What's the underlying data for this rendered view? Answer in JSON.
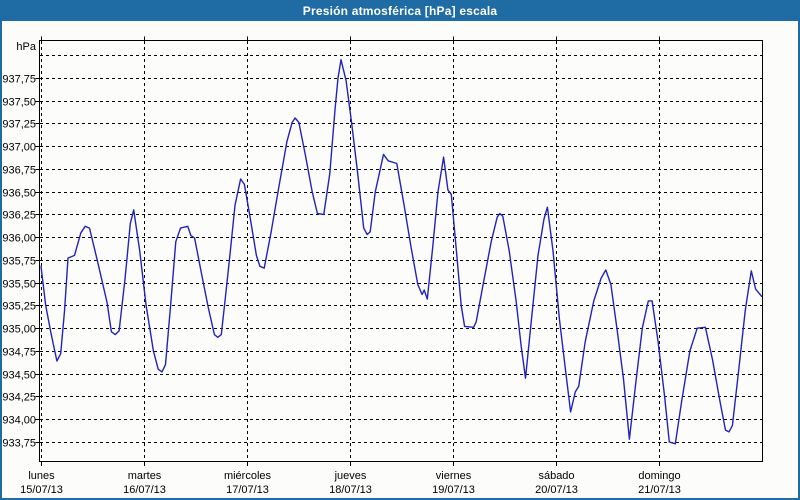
{
  "window": {
    "title": "Presión atmosférica [hPa] escala"
  },
  "colors": {
    "accent": "#1e6ca3",
    "titlebar_text": "#ffffff",
    "curve": "#2222c0",
    "grid": "#000000",
    "background": "#fcfdfa"
  },
  "chart_data": {
    "type": "line",
    "title": "Presión atmosférica [hPa] escala",
    "ylabel": "hPa",
    "unit_label": "hPa",
    "grid": "dashed",
    "legend": "none",
    "ylim": [
      933.55,
      938.15
    ],
    "y_gridline_top_value": 938.0,
    "y_gridline_step": 0.25,
    "y_tick_values": [
      937.75,
      937.5,
      937.25,
      937.0,
      936.75,
      936.5,
      936.25,
      936.0,
      935.75,
      935.5,
      935.25,
      935.0,
      934.75,
      934.5,
      934.25,
      934.0,
      933.75
    ],
    "y_tick_labels": [
      "937,75",
      "937,50",
      "937,25",
      "937,00",
      "936,75",
      "936,50",
      "936,25",
      "936,00",
      "935,75",
      "935,50",
      "935,25",
      "935,00",
      "934,75",
      "934,50",
      "934,25",
      "934,00",
      "933,75"
    ],
    "x_hours_range": [
      0,
      168
    ],
    "x_axis_days": [
      {
        "name": "lunes",
        "date": "15/07/13"
      },
      {
        "name": "martes",
        "date": "16/07/13"
      },
      {
        "name": "miércoles",
        "date": "17/07/13"
      },
      {
        "name": "jueves",
        "date": "18/07/13"
      },
      {
        "name": "viernes",
        "date": "19/07/13"
      },
      {
        "name": "sábado",
        "date": "20/07/13"
      },
      {
        "name": "domingo",
        "date": "21/07/13"
      }
    ],
    "series": [
      {
        "name": "Presión atmosférica [hPa]",
        "points": [
          [
            0,
            935.68
          ],
          [
            1.1,
            935.25
          ],
          [
            2.3,
            934.95
          ],
          [
            3.7,
            934.64
          ],
          [
            4.6,
            934.72
          ],
          [
            5.5,
            935.2
          ],
          [
            6.3,
            935.77
          ],
          [
            7.8,
            935.8
          ],
          [
            9.3,
            936.05
          ],
          [
            10.3,
            936.12
          ],
          [
            11.3,
            936.1
          ],
          [
            13.1,
            935.75
          ],
          [
            15.4,
            935.28
          ],
          [
            16.4,
            934.96
          ],
          [
            17.3,
            934.93
          ],
          [
            18.2,
            934.97
          ],
          [
            19.6,
            935.55
          ],
          [
            20.8,
            936.15
          ],
          [
            21.6,
            936.3
          ],
          [
            23,
            935.85
          ],
          [
            24.5,
            935.25
          ],
          [
            26.2,
            934.75
          ],
          [
            27.3,
            934.55
          ],
          [
            28.2,
            934.52
          ],
          [
            29,
            934.6
          ],
          [
            30.2,
            935.25
          ],
          [
            31.4,
            935.95
          ],
          [
            32.5,
            936.1
          ],
          [
            34.2,
            936.12
          ],
          [
            34.9,
            936.02
          ],
          [
            35.8,
            935.99
          ],
          [
            37.4,
            935.6
          ],
          [
            39,
            935.22
          ],
          [
            40.4,
            934.93
          ],
          [
            41.2,
            934.9
          ],
          [
            42,
            934.93
          ],
          [
            43,
            935.35
          ],
          [
            44,
            935.79
          ],
          [
            45.2,
            936.35
          ],
          [
            46.5,
            936.64
          ],
          [
            47.4,
            936.58
          ],
          [
            48.6,
            936.25
          ],
          [
            50.2,
            935.8
          ],
          [
            51,
            935.68
          ],
          [
            52,
            935.66
          ],
          [
            53.6,
            936.05
          ],
          [
            55.4,
            936.55
          ],
          [
            57.3,
            937.05
          ],
          [
            58.5,
            937.26
          ],
          [
            59.2,
            937.31
          ],
          [
            60.1,
            937.26
          ],
          [
            61.6,
            936.9
          ],
          [
            63.2,
            936.5
          ],
          [
            64.4,
            936.26
          ],
          [
            65.9,
            936.25
          ],
          [
            67.3,
            936.7
          ],
          [
            68.5,
            937.4
          ],
          [
            69.2,
            937.75
          ],
          [
            69.9,
            937.95
          ],
          [
            71.1,
            937.72
          ],
          [
            72.4,
            937.25
          ],
          [
            73.8,
            936.7
          ],
          [
            75.2,
            936.1
          ],
          [
            76,
            936.03
          ],
          [
            76.7,
            936.06
          ],
          [
            77.9,
            936.5
          ],
          [
            79.8,
            936.91
          ],
          [
            80.9,
            936.84
          ],
          [
            82.9,
            936.81
          ],
          [
            84.6,
            936.35
          ],
          [
            86.2,
            935.9
          ],
          [
            87.8,
            935.48
          ],
          [
            88.8,
            935.37
          ],
          [
            89.3,
            935.42
          ],
          [
            90,
            935.32
          ],
          [
            91.3,
            935.9
          ],
          [
            92.5,
            936.5
          ],
          [
            93.8,
            936.88
          ],
          [
            94.8,
            936.52
          ],
          [
            95.6,
            936.47
          ],
          [
            96.8,
            935.85
          ],
          [
            97.9,
            935.25
          ],
          [
            98.7,
            935.02
          ],
          [
            100.8,
            935.01
          ],
          [
            101.4,
            935.07
          ],
          [
            102.9,
            935.45
          ],
          [
            104.9,
            935.95
          ],
          [
            106.3,
            936.22
          ],
          [
            106.9,
            936.26
          ],
          [
            107.6,
            936.23
          ],
          [
            109.1,
            935.85
          ],
          [
            110.7,
            935.3
          ],
          [
            111.9,
            934.8
          ],
          [
            112.9,
            934.45
          ],
          [
            114.3,
            935.1
          ],
          [
            115.8,
            935.8
          ],
          [
            117.2,
            936.2
          ],
          [
            118,
            936.33
          ],
          [
            119.3,
            935.85
          ],
          [
            120.8,
            935.1
          ],
          [
            122.2,
            934.55
          ],
          [
            123.4,
            934.08
          ],
          [
            124.5,
            934.3
          ],
          [
            125.3,
            934.36
          ],
          [
            126.8,
            934.85
          ],
          [
            128.8,
            935.3
          ],
          [
            130.5,
            935.55
          ],
          [
            131.6,
            935.64
          ],
          [
            132.8,
            935.48
          ],
          [
            134.2,
            935
          ],
          [
            135.7,
            934.45
          ],
          [
            137.1,
            933.78
          ],
          [
            138.6,
            934.4
          ],
          [
            140.1,
            935
          ],
          [
            141.5,
            935.3
          ],
          [
            142.4,
            935.3
          ],
          [
            143.8,
            934.85
          ],
          [
            145.3,
            934.25
          ],
          [
            146.4,
            933.75
          ],
          [
            147.8,
            933.73
          ],
          [
            149.3,
            934.2
          ],
          [
            151.2,
            934.75
          ],
          [
            152.9,
            935
          ],
          [
            154.8,
            935.01
          ],
          [
            156.5,
            934.65
          ],
          [
            158.2,
            934.2
          ],
          [
            159.5,
            933.88
          ],
          [
            160.3,
            933.86
          ],
          [
            161.1,
            933.93
          ],
          [
            162.6,
            934.55
          ],
          [
            164.1,
            935.2
          ],
          [
            165.5,
            935.63
          ],
          [
            166.5,
            935.43
          ],
          [
            167.9,
            935.35
          ]
        ]
      }
    ]
  }
}
